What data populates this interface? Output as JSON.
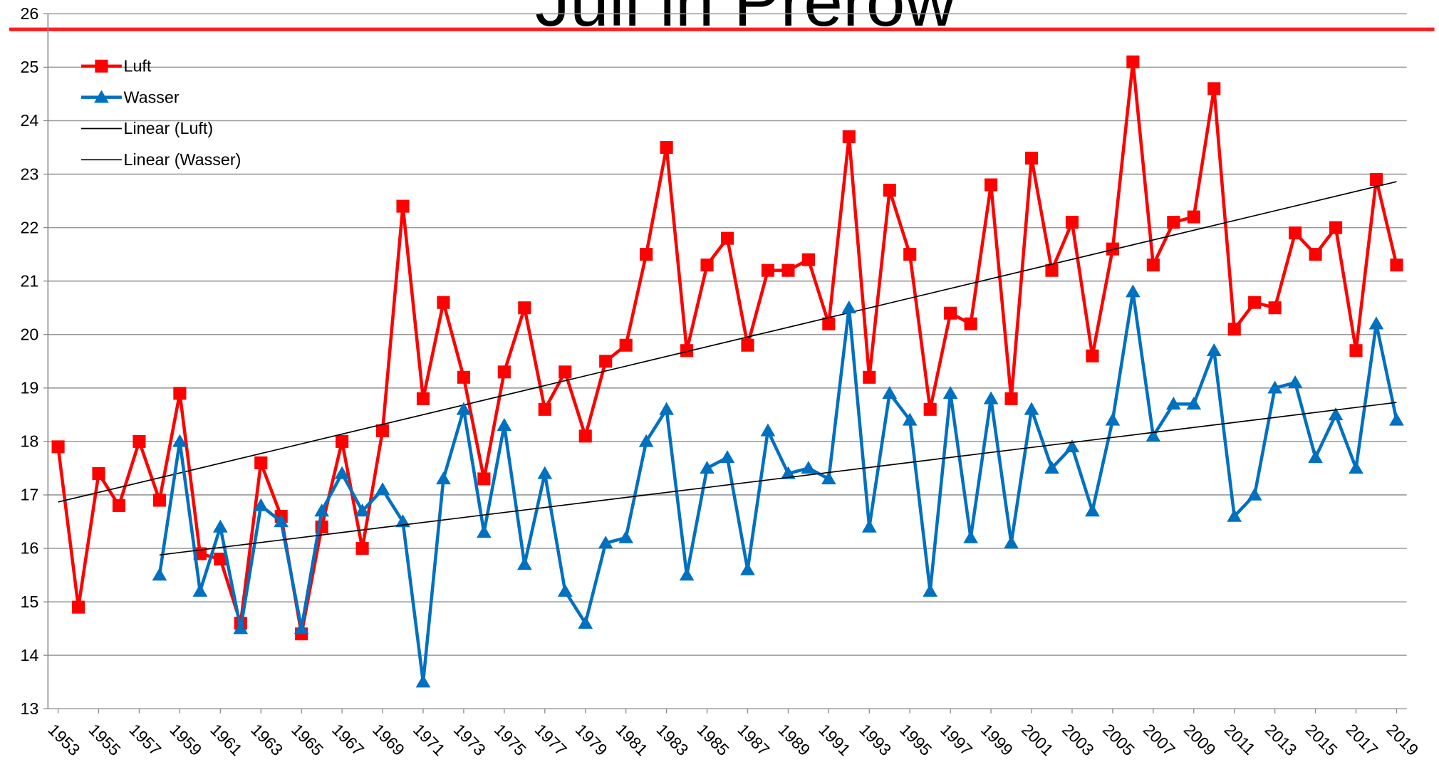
{
  "chart_data": {
    "type": "line",
    "title": "Juli in Prerow",
    "x": [
      1953,
      1954,
      1955,
      1956,
      1957,
      1958,
      1959,
      1960,
      1961,
      1962,
      1963,
      1964,
      1965,
      1966,
      1967,
      1968,
      1969,
      1970,
      1971,
      1972,
      1973,
      1974,
      1975,
      1976,
      1977,
      1978,
      1979,
      1980,
      1981,
      1982,
      1983,
      1984,
      1985,
      1986,
      1987,
      1988,
      1989,
      1990,
      1991,
      1992,
      1993,
      1994,
      1995,
      1996,
      1997,
      1998,
      1999,
      2000,
      2001,
      2002,
      2003,
      2004,
      2005,
      2006,
      2007,
      2008,
      2009,
      2010,
      2011,
      2012,
      2013,
      2014,
      2015,
      2016,
      2017,
      2018,
      2019
    ],
    "series": [
      {
        "name": "Luft",
        "color": "#ff0000",
        "marker": "square",
        "trendline": "Linear (Luft)",
        "values": [
          17.9,
          14.9,
          17.4,
          16.8,
          18.0,
          16.9,
          18.9,
          15.9,
          15.8,
          14.6,
          17.6,
          16.6,
          14.4,
          16.4,
          18.0,
          16.0,
          18.2,
          22.4,
          18.8,
          20.6,
          19.2,
          17.3,
          19.3,
          20.5,
          18.6,
          19.3,
          18.1,
          19.5,
          19.8,
          21.5,
          23.5,
          19.7,
          21.3,
          21.8,
          19.8,
          21.2,
          21.2,
          21.4,
          20.2,
          23.7,
          19.2,
          22.7,
          21.5,
          18.6,
          20.4,
          20.2,
          22.8,
          18.8,
          23.3,
          21.2,
          22.1,
          19.6,
          21.6,
          25.1,
          21.3,
          22.1,
          22.2,
          24.6,
          20.1,
          20.6,
          20.5,
          21.9,
          21.5,
          22.0,
          19.7,
          22.9,
          21.3
        ]
      },
      {
        "name": "Wasser",
        "color": "#0070c0",
        "marker": "triangle",
        "trendline": "Linear (Wasser)",
        "values": [
          null,
          null,
          null,
          null,
          null,
          15.5,
          18.0,
          15.2,
          16.4,
          14.5,
          16.8,
          16.5,
          14.5,
          16.7,
          17.4,
          16.7,
          17.1,
          16.5,
          13.5,
          17.3,
          18.6,
          16.3,
          18.3,
          15.7,
          17.4,
          15.2,
          14.6,
          16.1,
          16.2,
          18.0,
          18.6,
          15.5,
          17.5,
          17.7,
          15.6,
          18.2,
          17.4,
          17.5,
          17.3,
          20.5,
          16.4,
          18.9,
          18.4,
          15.2,
          18.9,
          16.2,
          18.8,
          16.1,
          18.6,
          17.5,
          17.9,
          16.7,
          18.4,
          20.8,
          18.1,
          18.7,
          18.7,
          19.7,
          16.6,
          17.0,
          19.0,
          19.1,
          17.7,
          18.5,
          17.5,
          20.2,
          18.4
        ]
      }
    ],
    "xlim": [
      1952.5,
      2019.5
    ],
    "xticks": [
      1953,
      1955,
      1957,
      1959,
      1961,
      1963,
      1965,
      1967,
      1969,
      1971,
      1973,
      1975,
      1977,
      1979,
      1981,
      1983,
      1985,
      1987,
      1989,
      1991,
      1993,
      1995,
      1997,
      1999,
      2001,
      2003,
      2005,
      2007,
      2009,
      2011,
      2013,
      2015,
      2017,
      2019
    ],
    "ylim": [
      13,
      26
    ],
    "yticks": [
      13,
      14,
      15,
      16,
      17,
      18,
      19,
      20,
      21,
      22,
      23,
      24,
      25,
      26
    ],
    "grid": true,
    "legend": "upper left"
  }
}
